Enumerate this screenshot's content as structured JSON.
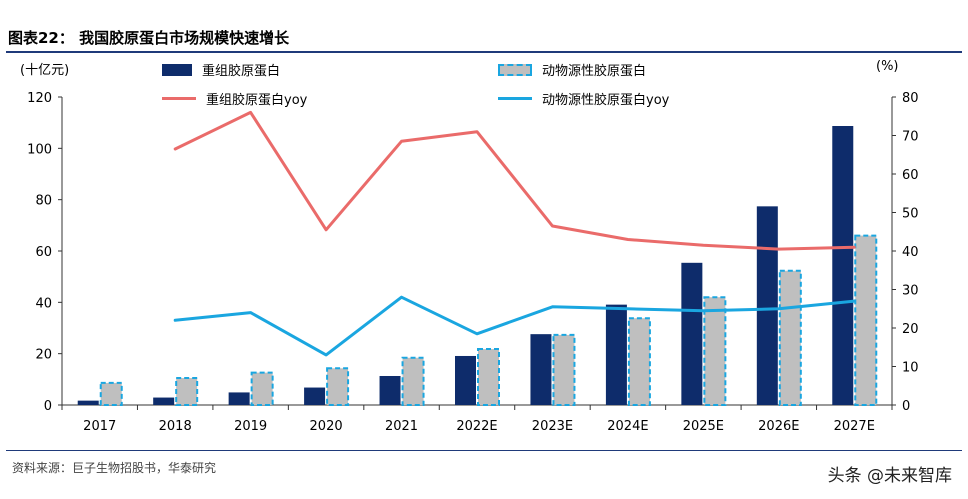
{
  "figure": {
    "title": "图表22： 我国胶原蛋白市场规模快速增长",
    "source": "资料来源：巨子生物招股书，华泰研究",
    "watermark": "头条 @未来智库"
  },
  "chart_data": {
    "type": "bar",
    "categories": [
      "2017",
      "2018",
      "2019",
      "2020",
      "2021",
      "2022E",
      "2023E",
      "2024E",
      "2025E",
      "2026E",
      "2027E"
    ],
    "left_axis": {
      "unit": "(十亿元)",
      "ylim": [
        0,
        120
      ],
      "ticks": [
        0,
        20,
        40,
        60,
        80,
        100,
        120
      ]
    },
    "right_axis": {
      "unit": "(%)",
      "ylim": [
        0,
        80
      ],
      "ticks": [
        0,
        10,
        20,
        30,
        40,
        50,
        60,
        70,
        80
      ]
    },
    "series": [
      {
        "name": "重组胶原蛋白",
        "kind": "bar",
        "axis": "left",
        "color": "#0e2c6b",
        "values": [
          1.7,
          2.9,
          4.9,
          6.8,
          11.3,
          19.1,
          27.6,
          39.1,
          55.4,
          77.4,
          108.7
        ]
      },
      {
        "name": "动物源性胶原蛋白",
        "kind": "bar",
        "axis": "left",
        "color": "#bfbfbf",
        "border": "#1aa6e0",
        "values": [
          8.6,
          10.5,
          12.6,
          14.3,
          18.4,
          21.8,
          27.3,
          33.8,
          42.0,
          52.3,
          66.0
        ]
      },
      {
        "name": "重组胶原蛋白yoy",
        "kind": "line",
        "axis": "right",
        "color": "#ea6b6a",
        "values": [
          null,
          66.5,
          76.0,
          45.5,
          68.5,
          71.0,
          46.5,
          43.0,
          41.5,
          40.5,
          41.0
        ]
      },
      {
        "name": "动物源性胶原蛋白yoy",
        "kind": "line",
        "axis": "right",
        "color": "#1aa6e0",
        "values": [
          null,
          22.0,
          24.0,
          13.0,
          28.0,
          18.5,
          25.5,
          25.0,
          24.5,
          25.0,
          27.0
        ]
      }
    ],
    "grid": false,
    "legend": "top"
  }
}
